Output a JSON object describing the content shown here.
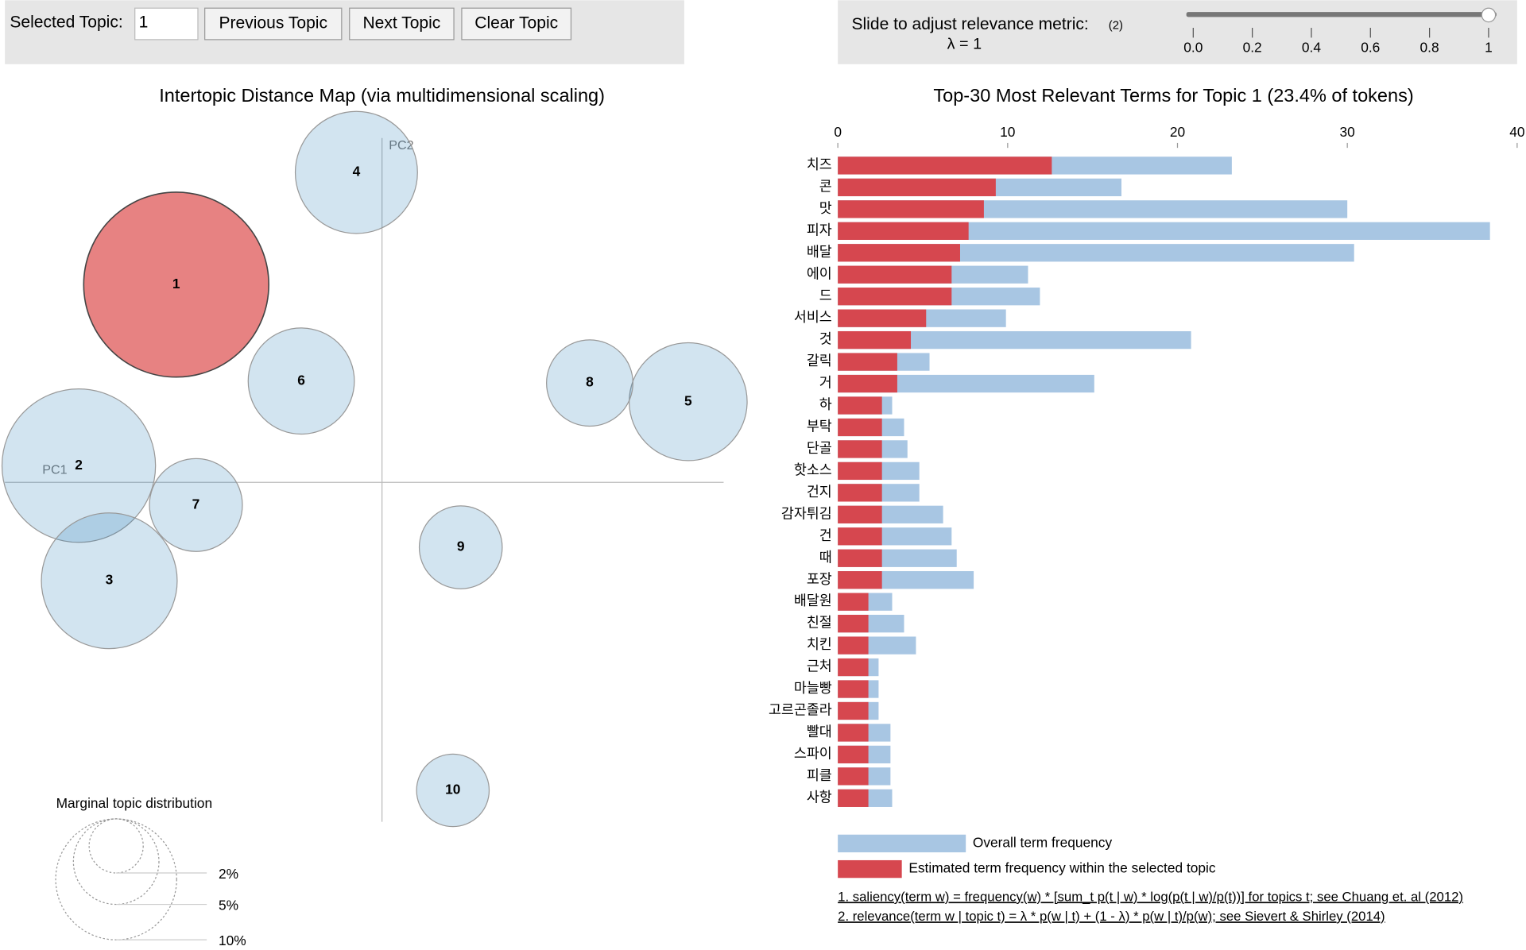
{
  "controls": {
    "selected_topic_label": "Selected Topic:",
    "selected_topic_value": "1",
    "buttons": [
      "Previous Topic",
      "Next Topic",
      "Clear Topic"
    ],
    "slider_label": "Slide to adjust relevance metric:",
    "slider_note": "(2)",
    "lambda_label": "λ = 1",
    "slider_value": 1,
    "slider_lim": [
      0,
      1
    ],
    "slider_ticks": [
      {
        "value": 0,
        "label": "0.0"
      },
      0.2,
      0.4,
      0.6,
      0.8,
      1
    ]
  },
  "chart_data": [
    {
      "type": "bubble",
      "title": "Intertopic Distance Map (via multidimensional scaling)",
      "x_label": "PC1",
      "y_label": "PC2",
      "labels": [
        "1",
        "2",
        "3",
        "4",
        "5",
        "6",
        "7",
        "8",
        "9",
        "10"
      ],
      "x": [
        -0.209,
        -0.308,
        -0.277,
        -0.026,
        0.311,
        -0.082,
        -0.189,
        0.211,
        0.08,
        0.072
      ],
      "y": [
        0.201,
        0.017,
        -0.1,
        0.315,
        0.082,
        0.103,
        -0.023,
        0.101,
        -0.066,
        -0.313
      ],
      "sizes": [
        23.4,
        16.1,
        12.6,
        10.2,
        9.5,
        7.7,
        5.9,
        5.1,
        4.7,
        3.6
      ],
      "xlim": [
        -0.383,
        0.347
      ],
      "ylim": [
        -0.345,
        0.375
      ],
      "color": "#1f77b4",
      "highlight_color": "#d62728",
      "selected": 1,
      "size_legend": {
        "title": "Marginal topic distribution",
        "values": [
          2,
          5,
          10
        ],
        "labels": [
          "2%",
          "5%",
          "10%"
        ]
      }
    },
    {
      "type": "barh",
      "title": "Top-30 Most Relevant Terms for Topic 1 (23.4% of tokens)",
      "categories": [
        "치즈",
        "콘",
        "맛",
        "피자",
        "배달",
        "에이",
        "드",
        "서비스",
        "것",
        "갈릭",
        "거",
        "하",
        "부탁",
        "단골",
        "핫소스",
        "건지",
        "감자튀김",
        "건",
        "때",
        "포장",
        "배달원",
        "친절",
        "치킨",
        "근처",
        "마늘빵",
        "고르곤졸라",
        "빨대",
        "스파이",
        "피클",
        "사항"
      ],
      "series": [
        {
          "name": "Overall term frequency",
          "color": "#a8c6e3",
          "values": [
            23.2,
            16.7,
            30.0,
            38.4,
            30.4,
            11.2,
            11.9,
            9.9,
            20.8,
            5.4,
            15.1,
            3.2,
            3.9,
            4.1,
            4.8,
            4.8,
            6.2,
            6.7,
            7.0,
            8.0,
            3.2,
            3.9,
            4.6,
            2.4,
            2.4,
            2.4,
            3.1,
            3.1,
            3.1,
            3.2
          ]
        },
        {
          "name": "Estimated term frequency within the selected topic",
          "color": "#d6474f",
          "values": [
            12.6,
            9.3,
            8.6,
            7.7,
            7.2,
            6.7,
            6.7,
            5.2,
            4.3,
            3.5,
            3.5,
            2.6,
            2.6,
            2.6,
            2.6,
            2.6,
            2.6,
            2.6,
            2.6,
            2.6,
            1.8,
            1.8,
            1.8,
            1.8,
            1.8,
            1.8,
            1.8,
            1.8,
            1.8,
            1.8
          ]
        }
      ],
      "xlim": [
        0,
        40
      ],
      "xticks": [
        0,
        10,
        20,
        30,
        40
      ],
      "footnotes": [
        "1. saliency(term w) = frequency(w) * [sum_t p(t | w) * log(p(t | w)/p(t))] for topics t; see Chuang et. al (2012)",
        "2. relevance(term w | topic t) = λ * p(w | t) + (1 - λ) * p(w | t)/p(w); see Sievert & Shirley (2014)"
      ]
    }
  ]
}
